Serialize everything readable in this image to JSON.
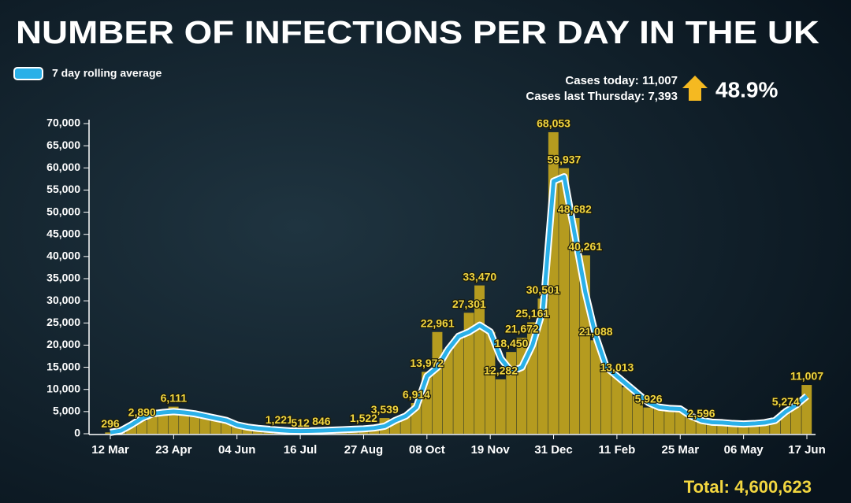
{
  "chart_data": {
    "type": "bar",
    "title": "NUMBER OF INFECTIONS PER DAY IN THE UK",
    "stats": {
      "cases_today": "Cases today: 11,007",
      "cases_last_thursday": "Cases last Thursday: 7,393",
      "change": "48.9%",
      "total": "Total: 4,600,623"
    },
    "categories": [
      "12 Mar",
      null,
      null,
      null,
      null,
      null,
      "23 Apr",
      null,
      null,
      null,
      null,
      null,
      "04 Jun",
      null,
      null,
      null,
      null,
      null,
      "16 Jul",
      null,
      null,
      null,
      null,
      null,
      "27 Aug",
      null,
      null,
      null,
      null,
      null,
      "08 Oct",
      null,
      null,
      null,
      null,
      null,
      "19 Nov",
      null,
      null,
      null,
      null,
      null,
      "31 Dec",
      null,
      null,
      null,
      null,
      null,
      "11 Feb",
      null,
      null,
      null,
      null,
      null,
      "25 Mar",
      null,
      null,
      null,
      null,
      null,
      "06 May",
      null,
      null,
      null,
      null,
      null,
      "17 Jun"
    ],
    "bars": {
      "color": "#b59b1f",
      "values": [
        296,
        900,
        2100,
        2890,
        4600,
        5000,
        6111,
        4900,
        4400,
        3900,
        3400,
        2800,
        2100,
        1500,
        1300,
        1100,
        1221,
        700,
        512,
        700,
        846,
        800,
        950,
        1050,
        1522,
        1400,
        3539,
        3200,
        4200,
        6914,
        13972,
        22961,
        19000,
        22000,
        27301,
        33470,
        23000,
        12282,
        18450,
        21672,
        25161,
        30501,
        68053,
        59937,
        48682,
        40261,
        21088,
        15000,
        13013,
        10500,
        8500,
        5926,
        5800,
        5600,
        5400,
        3900,
        2596,
        2500,
        2400,
        2200,
        2100,
        2300,
        2600,
        3100,
        5274,
        6800,
        11007
      ],
      "value_labels": [
        "296",
        null,
        null,
        "2,890",
        null,
        null,
        "6,111",
        null,
        null,
        null,
        null,
        null,
        null,
        null,
        null,
        null,
        "1,221",
        null,
        "512",
        null,
        "846",
        null,
        null,
        null,
        "1,522",
        null,
        "3,539",
        null,
        null,
        "6,914",
        "13,972",
        "22,961",
        null,
        null,
        "27,301",
        "33,470",
        null,
        "12,282",
        "18,450",
        "21,672",
        "25,161",
        "30,501",
        "68,053",
        "59,937",
        "48,682",
        "40,261",
        "21,088",
        null,
        "13,013",
        null,
        null,
        "5,926",
        null,
        null,
        null,
        null,
        "2,596",
        null,
        null,
        null,
        null,
        null,
        null,
        null,
        "5,274",
        null,
        "11,007"
      ]
    },
    "series": [
      {
        "name": "7 day rolling average",
        "color": "#2ab0e8",
        "values": [
          300,
          700,
          2000,
          3500,
          4500,
          4800,
          5000,
          4800,
          4500,
          4000,
          3500,
          3000,
          2000,
          1500,
          1200,
          1000,
          800,
          650,
          600,
          650,
          700,
          800,
          900,
          1000,
          1100,
          1300,
          1700,
          3000,
          4000,
          6000,
          13000,
          15000,
          19000,
          22000,
          23000,
          24500,
          23000,
          17000,
          14000,
          15000,
          20000,
          28000,
          57000,
          58000,
          45000,
          32000,
          22000,
          15000,
          13000,
          11000,
          9000,
          7000,
          6000,
          5700,
          5600,
          4000,
          3000,
          2600,
          2500,
          2300,
          2200,
          2300,
          2500,
          3000,
          5000,
          6500,
          8500
        ]
      }
    ],
    "ylim": [
      0,
      70000
    ],
    "yticks": [
      0,
      {
        "value": 5000,
        "label": "5,000"
      },
      {
        "value": 10000,
        "label": "10,000"
      },
      {
        "value": 15000,
        "label": "15,000"
      },
      {
        "value": 20000,
        "label": "20,000"
      },
      {
        "value": 25000,
        "label": "25,000"
      },
      {
        "value": 30000,
        "label": "30,000"
      },
      {
        "value": 35000,
        "label": "35,000"
      },
      {
        "value": 40000,
        "label": "40,000"
      },
      {
        "value": 45000,
        "label": "45,000"
      },
      {
        "value": 50000,
        "label": "50,000"
      },
      {
        "value": 55000,
        "label": "55,000"
      },
      {
        "value": 60000,
        "label": "60,000"
      },
      {
        "value": 65000,
        "label": "65,000"
      },
      {
        "value": 70000,
        "label": "70,000"
      }
    ],
    "grid": false
  }
}
